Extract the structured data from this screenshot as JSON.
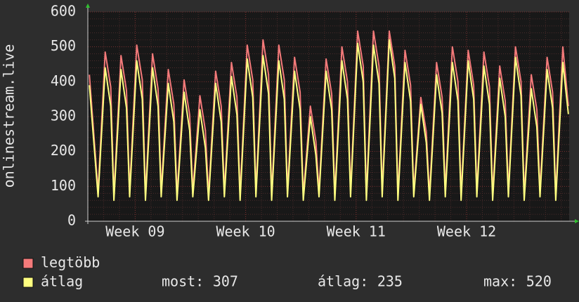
{
  "chart_data": {
    "type": "line",
    "y_label": "onlinestream.live",
    "x": [
      0.1,
      0.65,
      1.1,
      1.45,
      1.65,
      2.1,
      2.45,
      2.65,
      3.1,
      3.45,
      3.65,
      4.1,
      4.45,
      4.65,
      5.1,
      5.45,
      5.65,
      6.1,
      6.45,
      6.65,
      7.1,
      7.45,
      7.65,
      8.1,
      8.45,
      8.65,
      9.1,
      9.45,
      9.65,
      10.1,
      10.45,
      10.65,
      11.1,
      11.45,
      11.65,
      12.1,
      12.45,
      12.65,
      13.1,
      13.45,
      13.65,
      14.1,
      14.45,
      14.65,
      15.1,
      15.45,
      15.65,
      16.1,
      16.45,
      16.65,
      17.1,
      17.45,
      17.65,
      18.1,
      18.45,
      18.65,
      19.1,
      19.45,
      19.65,
      20.1,
      20.45,
      20.65,
      21.1,
      21.45,
      21.65,
      22.1,
      22.45,
      22.65,
      23.1,
      23.45,
      23.65,
      24.1,
      24.45,
      24.65,
      25.1,
      25.45,
      25.65,
      26.1,
      26.45,
      26.65,
      27.1,
      27.45,
      27.65,
      28.1,
      28.45,
      28.65,
      29.1,
      29.45,
      29.65,
      30.1,
      30.45
    ],
    "xlim": [
      0,
      30.5
    ],
    "xticks": [
      {
        "value": 3,
        "label": "Week 09"
      },
      {
        "value": 10,
        "label": "Week 10"
      },
      {
        "value": 17,
        "label": "Week 11"
      },
      {
        "value": 24,
        "label": "Week 12"
      }
    ],
    "ylim": [
      0,
      600
    ],
    "yticks": [
      0,
      100,
      200,
      300,
      400,
      500,
      600
    ],
    "grid": true,
    "series": [
      {
        "name": "legtöbb",
        "color": "#f47a7a",
        "values": [
          420,
          85,
          485,
          385,
          75,
          475,
          375,
          85,
          505,
          405,
          75,
          480,
          380,
          85,
          435,
          335,
          75,
          405,
          305,
          85,
          360,
          260,
          75,
          430,
          330,
          85,
          455,
          355,
          75,
          505,
          405,
          85,
          520,
          420,
          75,
          505,
          405,
          85,
          470,
          370,
          75,
          330,
          230,
          85,
          465,
          365,
          75,
          500,
          400,
          85,
          545,
          445,
          75,
          545,
          445,
          85,
          545,
          445,
          75,
          490,
          390,
          85,
          355,
          255,
          75,
          455,
          355,
          85,
          500,
          400,
          75,
          490,
          390,
          85,
          485,
          385,
          75,
          445,
          345,
          85,
          500,
          400,
          75,
          420,
          320,
          85,
          470,
          370,
          75,
          500,
          330
        ]
      },
      {
        "name": "átlag",
        "color": "#ffff80",
        "values": [
          390,
          70,
          440,
          330,
          60,
          435,
          325,
          70,
          460,
          350,
          60,
          440,
          330,
          70,
          395,
          285,
          60,
          370,
          260,
          70,
          320,
          210,
          60,
          395,
          285,
          70,
          415,
          305,
          60,
          465,
          355,
          70,
          475,
          365,
          60,
          460,
          350,
          70,
          430,
          320,
          60,
          300,
          190,
          70,
          430,
          320,
          60,
          460,
          350,
          70,
          510,
          400,
          60,
          505,
          395,
          70,
          520,
          410,
          60,
          455,
          345,
          70,
          335,
          225,
          60,
          420,
          310,
          70,
          455,
          345,
          60,
          460,
          350,
          70,
          445,
          335,
          60,
          410,
          300,
          70,
          470,
          360,
          60,
          380,
          270,
          70,
          435,
          325,
          60,
          455,
          307
        ]
      }
    ],
    "stats": [
      {
        "label": "most:",
        "value": 307
      },
      {
        "label": "átlag:",
        "value": 235
      },
      {
        "label": "max:",
        "value": 520
      }
    ]
  }
}
